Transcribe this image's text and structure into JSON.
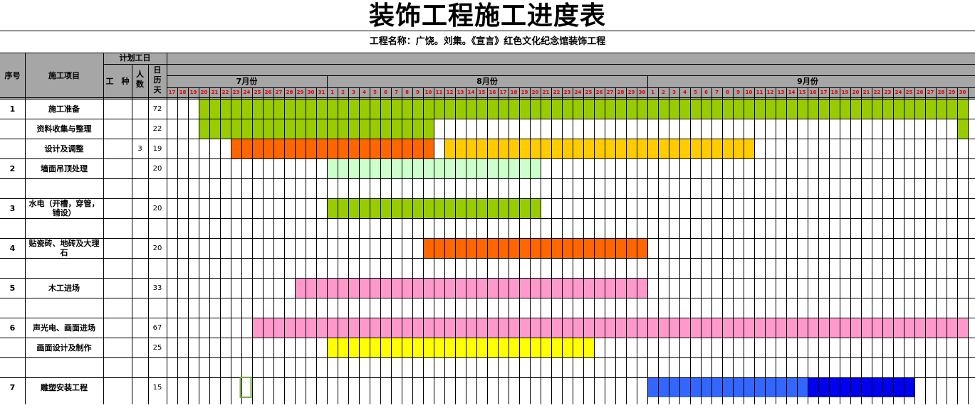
{
  "sheet": {
    "title": "装饰工程施工进度表",
    "project_name": "工程名称：广饶。刘集。《宣言》红色文化纪念馆装饰工程",
    "headers": {
      "seq": "序号",
      "item": "施工项目",
      "planned_days": "计划工日",
      "trade": "工　种",
      "people": "人\n数",
      "calendar_days": "日\n历\n天"
    },
    "months": [
      "7月份",
      "8月份",
      "9月份"
    ],
    "days_july": [
      "17",
      "18",
      "19",
      "20",
      "21",
      "22",
      "23",
      "24",
      "25",
      "26",
      "27",
      "28",
      "29",
      "30",
      "31"
    ],
    "days_august": [
      "1",
      "2",
      "3",
      "4",
      "5",
      "6",
      "7",
      "8",
      "9",
      "10",
      "11",
      "12",
      "13",
      "14",
      "15",
      "16",
      "17",
      "18",
      "19",
      "20",
      "21",
      "22",
      "23",
      "24",
      "25",
      "26",
      "27",
      "28",
      "29",
      "30"
    ],
    "days_september": [
      "1",
      "2",
      "3",
      "4",
      "5",
      "6",
      "7",
      "8",
      "9",
      "10",
      "11",
      "12",
      "13",
      "14",
      "15",
      "16",
      "17",
      "18",
      "19",
      "20",
      "21",
      "22",
      "23",
      "24",
      "25",
      "26",
      "27",
      "28",
      "29",
      "30"
    ],
    "rows": [
      {
        "seq": "1",
        "item": "施工准备",
        "people": "",
        "days": "72"
      },
      {
        "seq": "",
        "item": "资料收集与整理",
        "people": "",
        "days": "22"
      },
      {
        "seq": "",
        "item": "设计及调整",
        "people": "3",
        "days": "19"
      },
      {
        "seq": "2",
        "item": "墙面吊顶处理",
        "people": "",
        "days": "20"
      },
      {
        "seq": "",
        "item": "",
        "people": "",
        "days": ""
      },
      {
        "seq": "3",
        "item": "水电（开槽，穿管，铺设）",
        "people": "",
        "days": "20"
      },
      {
        "seq": "",
        "item": "",
        "people": "",
        "days": ""
      },
      {
        "seq": "4",
        "item": "贴瓷砖、地砖及大理石",
        "people": "",
        "days": "20"
      },
      {
        "seq": "",
        "item": "",
        "people": "",
        "days": ""
      },
      {
        "seq": "5",
        "item": "木工进场",
        "people": "",
        "days": "33"
      },
      {
        "seq": "",
        "item": "",
        "people": "",
        "days": ""
      },
      {
        "seq": "6",
        "item": "声光电、画面进场",
        "people": "",
        "days": "67"
      },
      {
        "seq": "",
        "item": "画面设计及制作",
        "people": "",
        "days": "25"
      },
      {
        "seq": "",
        "item": "",
        "people": "",
        "days": ""
      },
      {
        "seq": "7",
        "item": "雕塑安装工程",
        "people": "",
        "days": "15"
      }
    ],
    "bars": [
      {
        "row": 0,
        "start": 3,
        "end": 74,
        "color": "#99cc00"
      },
      {
        "row": 1,
        "start": 3,
        "end": 24,
        "color": "#99cc00"
      },
      {
        "row": 1,
        "start": 74,
        "end": 74,
        "color": "#99cc00"
      },
      {
        "row": 2,
        "start": 6,
        "end": 24,
        "color": "#ff6600"
      },
      {
        "row": 2,
        "start": 26,
        "end": 54,
        "color": "#ffcc00"
      },
      {
        "row": 3,
        "start": 15,
        "end": 34,
        "color": "#ccffcc"
      },
      {
        "row": 5,
        "start": 15,
        "end": 34,
        "color": "#99cc00"
      },
      {
        "row": 7,
        "start": 24,
        "end": 44,
        "color": "#ff6600"
      },
      {
        "row": 9,
        "start": 12,
        "end": 44,
        "color": "#ff99cc"
      },
      {
        "row": 11,
        "start": 8,
        "end": 74,
        "color": "#ff99cc"
      },
      {
        "row": 12,
        "start": 15,
        "end": 39,
        "color": "#ffff00"
      },
      {
        "row": 14,
        "start": 45,
        "end": 59,
        "color": "#3366ff"
      },
      {
        "row": 14,
        "start": 60,
        "end": 69,
        "color": "#0000ee"
      }
    ],
    "selected_cell": {
      "row": 14,
      "col": 7,
      "color": "#70ad47"
    },
    "colors": {
      "header_bg": "#a6a6a6",
      "grid": "#000000",
      "day_text": "#e00000"
    }
  }
}
